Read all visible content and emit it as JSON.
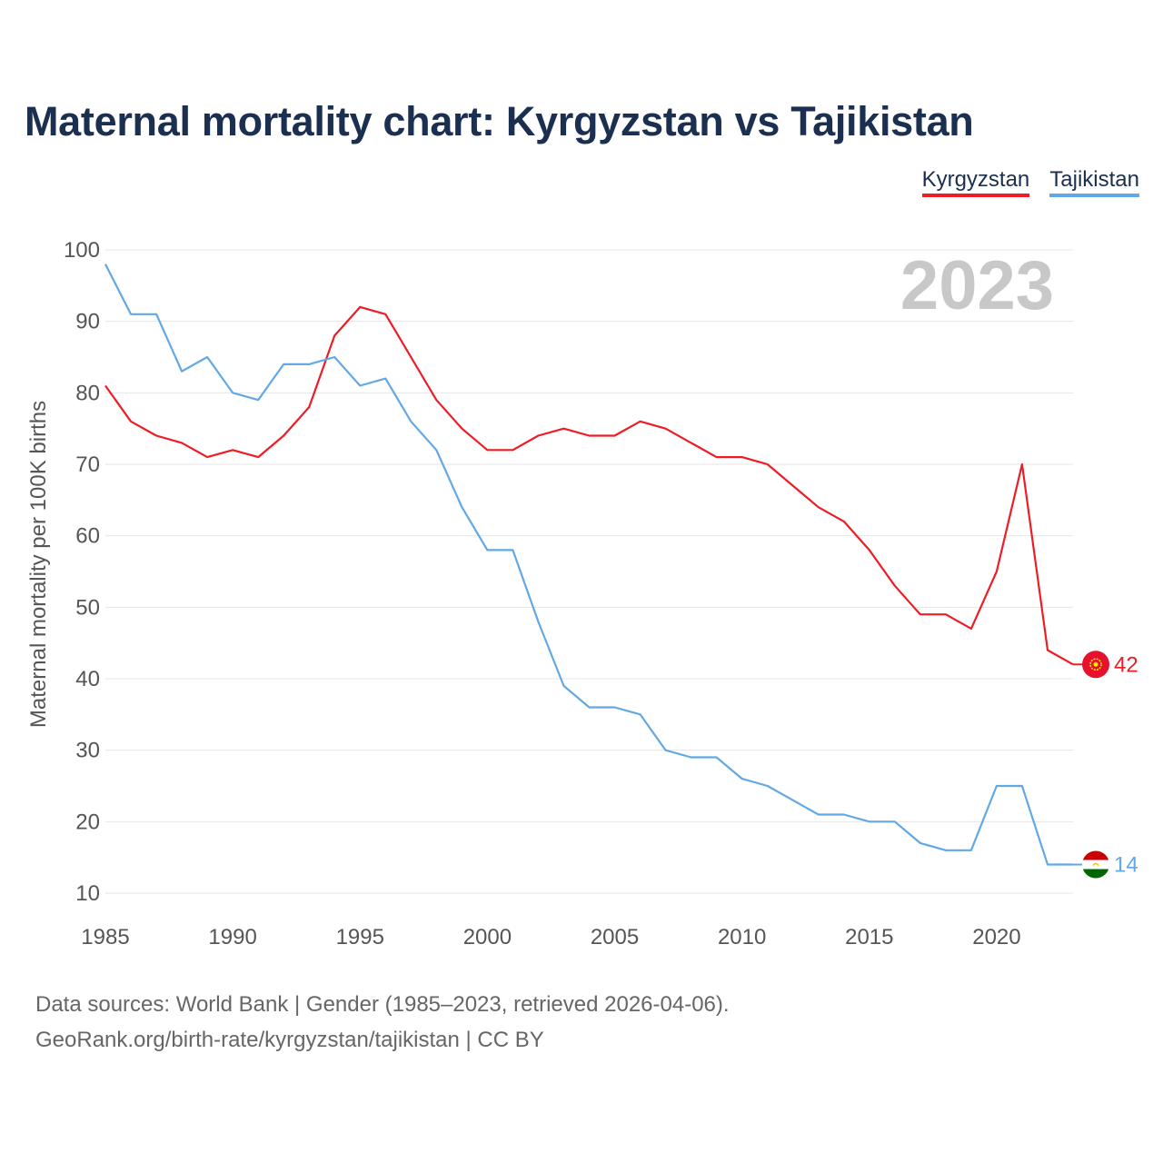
{
  "header": {
    "title": "Maternal mortality chart: Kyrgyzstan vs Tajikistan"
  },
  "legend": [
    {
      "label": "Kyrgyzstan",
      "color": "#ee1c25"
    },
    {
      "label": "Tajikistan",
      "color": "#62a8e5"
    }
  ],
  "watermark_year": "2023",
  "footer": {
    "sources": "Data sources: World Bank | Gender (1985–2023, retrieved 2026-04-06).",
    "link": "GeoRank.org/birth-rate/kyrgyzstan/tajikistan | CC BY"
  },
  "chart_data": {
    "type": "line",
    "title": "Maternal mortality chart: Kyrgyzstan vs Tajikistan",
    "xlabel": "",
    "ylabel": "Maternal mortality per 100K births",
    "xlim": [
      1985,
      2023
    ],
    "ylim": [
      10,
      100
    ],
    "xticks": [
      1985,
      1990,
      1995,
      2000,
      2005,
      2010,
      2015,
      2020
    ],
    "yticks": [
      10,
      20,
      30,
      40,
      50,
      60,
      70,
      80,
      90,
      100
    ],
    "grid": true,
    "x": [
      1985,
      1986,
      1987,
      1988,
      1989,
      1990,
      1991,
      1992,
      1993,
      1994,
      1995,
      1996,
      1997,
      1998,
      1999,
      2000,
      2001,
      2002,
      2003,
      2004,
      2005,
      2006,
      2007,
      2008,
      2009,
      2010,
      2011,
      2012,
      2013,
      2014,
      2015,
      2016,
      2017,
      2018,
      2019,
      2020,
      2021,
      2022,
      2023
    ],
    "series": [
      {
        "name": "Kyrgyzstan",
        "color": "#ee1c25",
        "end_label": "42",
        "flag_icon": "kyrgyzstan-flag-icon",
        "values": [
          81,
          76,
          74,
          73,
          71,
          72,
          71,
          74,
          78,
          88,
          92,
          91,
          85,
          79,
          75,
          72,
          72,
          74,
          75,
          74,
          74,
          76,
          75,
          73,
          71,
          71,
          70,
          67,
          64,
          62,
          58,
          53,
          49,
          49,
          47,
          55,
          70,
          44,
          42
        ]
      },
      {
        "name": "Tajikistan",
        "color": "#62a8e5",
        "end_label": "14",
        "flag_icon": "tajikistan-flag-icon",
        "values": [
          98,
          91,
          91,
          83,
          85,
          80,
          79,
          84,
          84,
          85,
          81,
          82,
          76,
          72,
          64,
          58,
          58,
          48,
          39,
          36,
          36,
          35,
          30,
          29,
          29,
          26,
          25,
          23,
          21,
          21,
          20,
          20,
          17,
          16,
          16,
          25,
          25,
          14,
          14
        ]
      }
    ]
  }
}
